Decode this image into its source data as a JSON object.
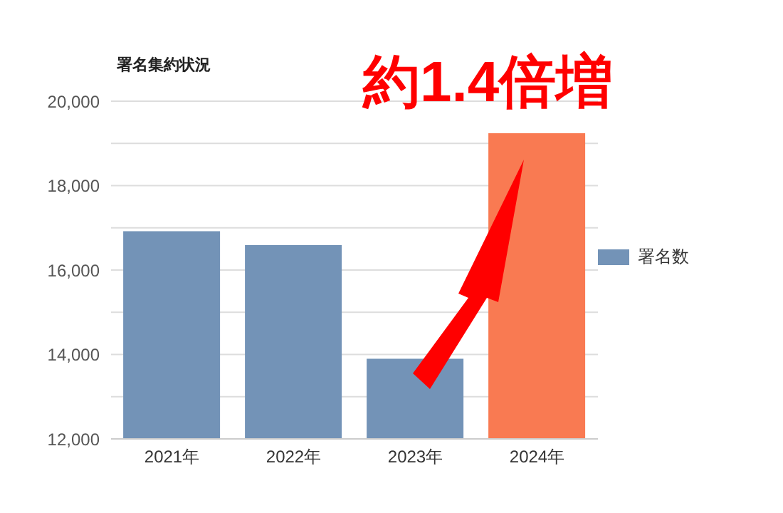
{
  "chart_data": {
    "type": "bar",
    "title": "署名集約状況",
    "categories": [
      "2021年",
      "2022年",
      "2023年",
      "2024年"
    ],
    "series": [
      {
        "name": "署名数",
        "colors": [
          "#7393b7",
          "#7393b7",
          "#7393b7",
          "#f97a52"
        ],
        "values": [
          16920,
          16590,
          13900,
          19240
        ]
      }
    ],
    "ylim": [
      12000,
      20000
    ],
    "yticks": [
      {
        "value": 12000,
        "label": "12,000"
      },
      {
        "value": 13000,
        "label": null
      },
      {
        "value": 14000,
        "label": "14,000"
      },
      {
        "value": 15000,
        "label": null
      },
      {
        "value": 16000,
        "label": "16,000"
      },
      {
        "value": 17000,
        "label": null
      },
      {
        "value": 18000,
        "label": "18,000"
      },
      {
        "value": 19000,
        "label": null
      },
      {
        "value": 20000,
        "label": "20,000"
      }
    ],
    "grid": "y",
    "legend": "right",
    "annotations": [
      "約1.4倍増"
    ]
  }
}
